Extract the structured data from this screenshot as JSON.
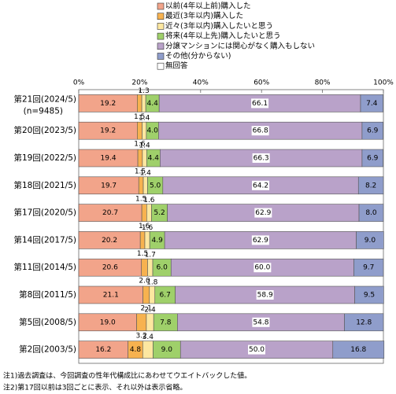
{
  "chart_data": {
    "type": "stacked-bar-horizontal",
    "categories": [
      "第21回(2024/5)",
      "第20回(2023/5)",
      "第19回(2022/5)",
      "第18回(2021/5)",
      "第17回(2020/5)",
      "第14回(2017/5)",
      "第11回(2014/5)",
      "第8回(2011/5)",
      "第5回(2008/5)",
      "第2回(2003/5)"
    ],
    "sample_note": "(n=9485)",
    "xlim": [
      0,
      100
    ],
    "xticks": [
      {
        "value": 0,
        "label": "0%"
      },
      {
        "value": 20,
        "label": "20%"
      },
      {
        "value": 40,
        "label": "40%"
      },
      {
        "value": 60,
        "label": "60%"
      },
      {
        "value": 80,
        "label": "80%"
      },
      {
        "value": 100,
        "label": "100%"
      }
    ],
    "series": [
      {
        "name": "以前(4年以上前)購入した",
        "color": "#f2a48a",
        "values": [
          19.2,
          19.2,
          19.4,
          19.7,
          20.7,
          20.2,
          20.6,
          21.1,
          19.0,
          16.2
        ],
        "value_labels": [
          "19.2",
          "19.2",
          "19.4",
          "19.7",
          "20.7",
          "20.2",
          "20.6",
          "21.1",
          "19.0",
          "16.2"
        ]
      },
      {
        "name": "最近(3年以内)購入した",
        "color": "#f7b24f",
        "values": [
          1.5,
          1.6,
          1.5,
          1.5,
          1.6,
          1.5,
          2.0,
          2.1,
          3.2,
          4.8
        ],
        "value_labels": [
          "1.5",
          "1.6",
          "1.5",
          "1.5",
          "1.6",
          "1.5",
          "2.0",
          "2.1",
          "3.2",
          "4.8"
        ]
      },
      {
        "name": "近々(3年以内)購入したいと思う",
        "color": "#fde7a0",
        "values": [
          1.3,
          1.4,
          1.4,
          1.4,
          1.6,
          1.6,
          1.7,
          1.8,
          2.4,
          3.4
        ],
        "value_labels": [
          "1.3",
          "1.4",
          "1.4",
          "1.4",
          "1.6",
          "1.6",
          "1.7",
          "1.8",
          "2.4",
          "3.4"
        ]
      },
      {
        "name": "将来(4年以上先)購入したいと思う",
        "color": "#9fd06a",
        "values": [
          4.4,
          4.0,
          4.4,
          5.0,
          5.2,
          4.9,
          6.0,
          6.7,
          7.8,
          9.0
        ],
        "value_labels": [
          "4.4",
          "4.0",
          "4.4",
          "5.0",
          "5.2",
          "4.9",
          "6.0",
          "6.7",
          "7.8",
          "9.0"
        ]
      },
      {
        "name": "分譲マンションには関心がなく購入もしない",
        "color": "#b9a2c9",
        "values": [
          66.1,
          66.8,
          66.3,
          64.2,
          62.9,
          62.9,
          60.0,
          58.9,
          54.8,
          50.0
        ],
        "value_labels": [
          "66.1",
          "66.8",
          "66.3",
          "64.2",
          "62.9",
          "62.9",
          "60.0",
          "58.9",
          "54.8",
          "50.0"
        ]
      },
      {
        "name": "その他(分からない)",
        "color": "#8f9dcb",
        "values": [
          7.4,
          6.9,
          6.9,
          8.2,
          8.0,
          9.0,
          9.7,
          9.5,
          12.8,
          16.8
        ],
        "value_labels": [
          "7.4",
          "6.9",
          "6.9",
          "8.2",
          "8.0",
          "9.0",
          "9.7",
          "9.5",
          "12.8",
          "16.8"
        ]
      },
      {
        "name": "無回答",
        "color": "#ffffff",
        "values": [
          0,
          0,
          0,
          0,
          0,
          0,
          0,
          0,
          0,
          0
        ]
      }
    ],
    "notes": [
      "注1)過去調査は、今回調査の性年代構成比にあわせてウエイトバックした値。",
      "注2)第17回以前は3回ごとに表示、それ以外は表示省略。"
    ]
  }
}
